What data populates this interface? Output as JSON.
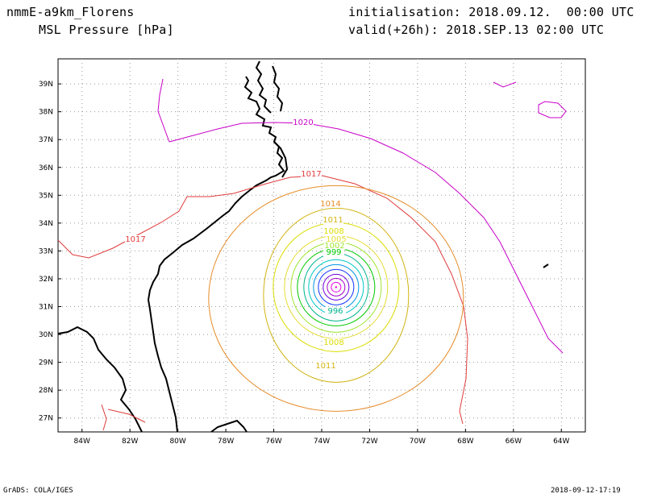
{
  "header": {
    "model_name": "nmmE-a9km_Florens",
    "field_name": "MSL Pressure [hPa]",
    "init_time": "initialisation: 2018.09.12.  00:00 UTC",
    "valid_time": "valid(+26h): 2018.SEP.13 02:00 UTC"
  },
  "footer": {
    "credit": "GrADS: COLA/IGES",
    "timestamp": "2018-09-12-17:19"
  },
  "map": {
    "lon_range": [
      -85,
      -63
    ],
    "lat_range": [
      26.5,
      39.9
    ],
    "lon_ticks": [
      "84W",
      "82W",
      "80W",
      "78W",
      "76W",
      "74W",
      "72W",
      "70W",
      "68W",
      "66W",
      "64W"
    ],
    "lat_ticks": [
      "27N",
      "28N",
      "29N",
      "30N",
      "31N",
      "32N",
      "33N",
      "34N",
      "35N",
      "36N",
      "37N",
      "38N",
      "39N"
    ],
    "grid": true,
    "cyclone_center": {
      "lon": -73.4,
      "lat": 31.7
    },
    "isobars": [
      {
        "level": 1020,
        "label": "1020",
        "color": "#c800c8"
      },
      {
        "level": 1017,
        "label": "1017",
        "color": "#e03c3c"
      },
      {
        "level": 1014,
        "label": "1014",
        "color": "#e68c28"
      },
      {
        "level": 1011,
        "label": "1011",
        "color": "#d2b414"
      },
      {
        "level": 1008,
        "label": "1008",
        "color": "#dcdc00"
      },
      {
        "level": 1005,
        "label": "1005",
        "color": "#e6dc32"
      },
      {
        "level": 1002,
        "label": "1002",
        "color": "#a0e632"
      },
      {
        "level": 999,
        "label": "999",
        "color": "#00c800"
      },
      {
        "level": 996,
        "label": "996",
        "color": "#00b48c"
      },
      {
        "level": 993,
        "label": "",
        "color": "#00c8c8"
      },
      {
        "level": 990,
        "label": "",
        "color": "#0096e6"
      },
      {
        "level": 987,
        "label": "",
        "color": "#1e3cff"
      },
      {
        "level": 984,
        "label": "",
        "color": "#6e00dc"
      },
      {
        "level": 981,
        "label": "",
        "color": "#a000c8"
      },
      {
        "level": 978,
        "label": "",
        "color": "#e600e6"
      }
    ]
  }
}
